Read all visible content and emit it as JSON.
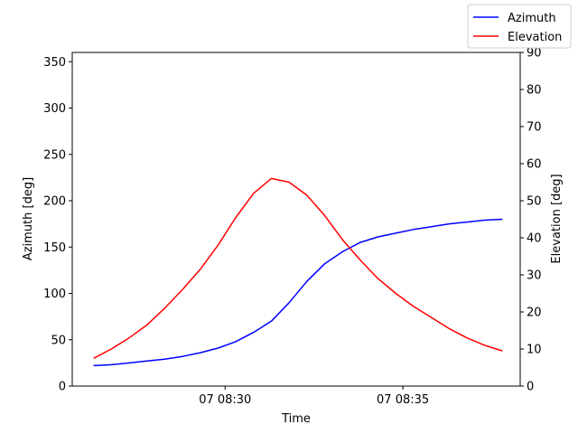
{
  "chart_data": {
    "type": "line",
    "xlabel": "Time",
    "ylabel_left": "Azimuth [deg]",
    "ylabel_right": "Elevation [deg]",
    "x_ticks": [
      "07 08:30",
      "07 08:35"
    ],
    "x_tick_values": [
      30,
      35
    ],
    "xlim": [
      25.7,
      38.3
    ],
    "ylim_left": [
      0,
      360
    ],
    "yticks_left": [
      0,
      50,
      100,
      150,
      200,
      250,
      300,
      350
    ],
    "ylim_right": [
      0,
      90
    ],
    "yticks_right": [
      0,
      10,
      20,
      30,
      40,
      50,
      60,
      70,
      80,
      90
    ],
    "x": [
      26.3,
      26.8,
      27.3,
      27.8,
      28.3,
      28.8,
      29.3,
      29.8,
      30.3,
      30.8,
      31.3,
      31.8,
      32.3,
      32.8,
      33.3,
      33.8,
      34.3,
      34.8,
      35.3,
      35.8,
      36.3,
      36.8,
      37.3,
      37.8
    ],
    "legend_position": "top-right",
    "grid": false,
    "series": [
      {
        "name": "Azimuth",
        "axis": "left",
        "color": "#0000ff",
        "values": [
          22,
          23,
          25,
          27,
          29,
          32,
          36,
          41,
          48,
          58,
          70,
          90,
          113,
          132,
          145,
          155,
          161,
          165,
          169,
          172,
          175,
          177,
          179,
          180
        ]
      },
      {
        "name": "Elevation",
        "axis": "right",
        "color": "#ff0000",
        "values": [
          7.5,
          10,
          13,
          16.5,
          21,
          26,
          31.5,
          38,
          45.5,
          52,
          56,
          55,
          51.5,
          46,
          39.5,
          34,
          29,
          25,
          21.5,
          18.5,
          15.5,
          13,
          11,
          9.5
        ]
      }
    ]
  }
}
